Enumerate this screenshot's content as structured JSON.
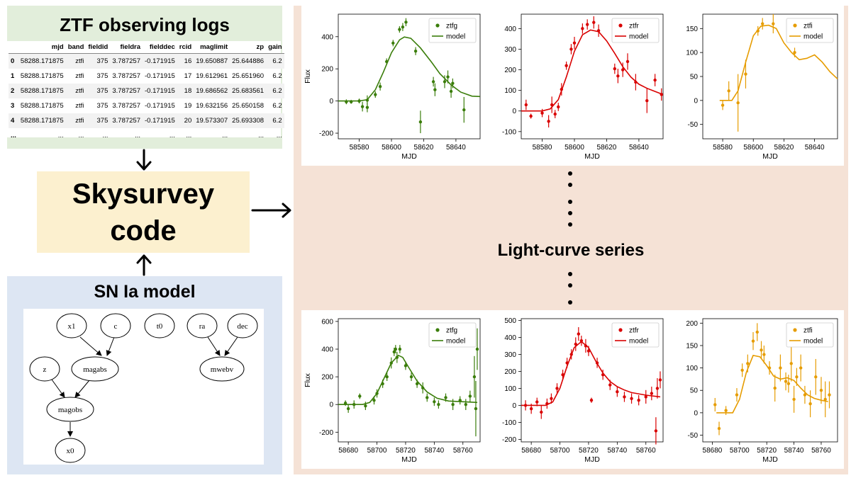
{
  "logs": {
    "title": "ZTF observing logs",
    "columns": [
      "",
      "mjd",
      "band",
      "fieldid",
      "fieldra",
      "fielddec",
      "rcid",
      "maglimit",
      "zp",
      "gain"
    ],
    "rows": [
      [
        "0",
        "58288.171875",
        "ztfi",
        "375",
        "3.787257",
        "-0.171915",
        "16",
        "19.650887",
        "25.644886",
        "6.2"
      ],
      [
        "1",
        "58288.171875",
        "ztfi",
        "375",
        "3.787257",
        "-0.171915",
        "17",
        "19.612961",
        "25.651960",
        "6.2"
      ],
      [
        "2",
        "58288.171875",
        "ztfi",
        "375",
        "3.787257",
        "-0.171915",
        "18",
        "19.686562",
        "25.683561",
        "6.2"
      ],
      [
        "3",
        "58288.171875",
        "ztfi",
        "375",
        "3.787257",
        "-0.171915",
        "19",
        "19.632156",
        "25.650158",
        "6.2"
      ],
      [
        "4",
        "58288.171875",
        "ztfi",
        "375",
        "3.787257",
        "-0.171915",
        "20",
        "19.573307",
        "25.693308",
        "6.2"
      ],
      [
        "...",
        "...",
        "...",
        "...",
        "...",
        "...",
        "...",
        "...",
        "...",
        "..."
      ]
    ]
  },
  "code": {
    "line1": "Skysurvey",
    "line2": "code"
  },
  "model": {
    "title": "SN Ia model",
    "nodes": [
      "x1",
      "c",
      "t0",
      "ra",
      "dec",
      "z",
      "magabs",
      "mwebv",
      "magobs",
      "x0"
    ]
  },
  "series_label": "Light-curve series",
  "colors": {
    "ztfg": "#3a7d0a",
    "ztfr": "#d90000",
    "ztfi": "#e69c00"
  },
  "chart_data": [
    {
      "type": "scatter",
      "xlabel": "MJD",
      "ylabel": "Flux",
      "legend": [
        "ztfg",
        "model"
      ],
      "xlim": [
        58567,
        58655
      ],
      "ylim": [
        -235,
        540
      ],
      "xticks": [
        58580,
        58600,
        58620,
        58640
      ],
      "yticks": [
        -200,
        0,
        200,
        400
      ],
      "points": [
        [
          58572,
          -5,
          15
        ],
        [
          58575,
          -5,
          12
        ],
        [
          58580,
          0,
          15
        ],
        [
          58582,
          -35,
          30
        ],
        [
          58585,
          -40,
          30
        ],
        [
          58585,
          5,
          30
        ],
        [
          58590,
          40,
          20
        ],
        [
          58593,
          90,
          25
        ],
        [
          58597,
          245,
          20
        ],
        [
          58601,
          360,
          20
        ],
        [
          58605,
          445,
          20
        ],
        [
          58607,
          460,
          25
        ],
        [
          58609,
          490,
          25
        ],
        [
          58615,
          310,
          25
        ],
        [
          58618,
          -130,
          70
        ],
        [
          58626,
          120,
          30
        ],
        [
          58627,
          70,
          40
        ],
        [
          58633,
          120,
          40
        ],
        [
          58635,
          150,
          40
        ],
        [
          58637,
          60,
          40
        ],
        [
          58638,
          110,
          30
        ],
        [
          58645,
          -55,
          80
        ]
      ],
      "model": [
        [
          58567,
          0
        ],
        [
          58580,
          0
        ],
        [
          58585,
          8
        ],
        [
          58590,
          70
        ],
        [
          58595,
          180
        ],
        [
          58600,
          300
        ],
        [
          58605,
          380
        ],
        [
          58608,
          398
        ],
        [
          58612,
          390
        ],
        [
          58618,
          330
        ],
        [
          58625,
          240
        ],
        [
          58630,
          170
        ],
        [
          58637,
          100
        ],
        [
          58643,
          55
        ],
        [
          58650,
          30
        ],
        [
          58655,
          28
        ]
      ]
    },
    {
      "type": "scatter",
      "xlabel": "MJD",
      "ylabel": "",
      "legend": [
        "ztfr",
        "model"
      ],
      "xlim": [
        58567,
        58655
      ],
      "ylim": [
        -135,
        470
      ],
      "xticks": [
        58580,
        58600,
        58620,
        58640
      ],
      "yticks": [
        -100,
        0,
        100,
        200,
        300,
        400
      ],
      "points": [
        [
          58570,
          30,
          25
        ],
        [
          58573,
          -25,
          12
        ],
        [
          58580,
          -10,
          20
        ],
        [
          58584,
          -50,
          30
        ],
        [
          58586,
          30,
          40
        ],
        [
          58588,
          -15,
          20
        ],
        [
          58590,
          20,
          20
        ],
        [
          58592,
          105,
          30
        ],
        [
          58595,
          220,
          20
        ],
        [
          58598,
          300,
          25
        ],
        [
          58600,
          330,
          30
        ],
        [
          58605,
          400,
          25
        ],
        [
          58608,
          420,
          25
        ],
        [
          58612,
          430,
          30
        ],
        [
          58615,
          390,
          30
        ],
        [
          58625,
          205,
          25
        ],
        [
          58627,
          170,
          35
        ],
        [
          58630,
          200,
          35
        ],
        [
          58633,
          240,
          40
        ],
        [
          58638,
          140,
          40
        ],
        [
          58645,
          50,
          60
        ],
        [
          58650,
          150,
          30
        ],
        [
          58654,
          80,
          30
        ]
      ],
      "model": [
        [
          58567,
          0
        ],
        [
          58580,
          0
        ],
        [
          58585,
          10
        ],
        [
          58590,
          55
        ],
        [
          58595,
          165
        ],
        [
          58600,
          290
        ],
        [
          58605,
          370
        ],
        [
          58610,
          393
        ],
        [
          58615,
          385
        ],
        [
          58620,
          340
        ],
        [
          58625,
          280
        ],
        [
          58630,
          215
        ],
        [
          58635,
          165
        ],
        [
          58640,
          130
        ],
        [
          58645,
          110
        ],
        [
          58650,
          95
        ],
        [
          58655,
          80
        ]
      ]
    },
    {
      "type": "scatter",
      "xlabel": "MJD",
      "ylabel": "",
      "legend": [
        "ztfi",
        "model"
      ],
      "xlim": [
        58567,
        58655
      ],
      "ylim": [
        -80,
        180
      ],
      "xticks": [
        58580,
        58600,
        58620,
        58640
      ],
      "yticks": [
        -50,
        0,
        50,
        100,
        150
      ],
      "points": [
        [
          58580,
          -10,
          10
        ],
        [
          58584,
          20,
          20
        ],
        [
          58590,
          -5,
          60
        ],
        [
          58595,
          55,
          30
        ],
        [
          58603,
          145,
          10
        ],
        [
          58606,
          160,
          12
        ],
        [
          58613,
          160,
          20
        ],
        [
          58627,
          100,
          10
        ]
      ],
      "model": [
        [
          58578,
          0
        ],
        [
          58586,
          0
        ],
        [
          58590,
          20
        ],
        [
          58595,
          80
        ],
        [
          58600,
          135
        ],
        [
          58605,
          155
        ],
        [
          58610,
          157
        ],
        [
          58615,
          150
        ],
        [
          58620,
          120
        ],
        [
          58625,
          100
        ],
        [
          58630,
          85
        ],
        [
          58635,
          88
        ],
        [
          58640,
          95
        ],
        [
          58645,
          80
        ],
        [
          58650,
          60
        ],
        [
          58655,
          45
        ]
      ]
    },
    {
      "type": "scatter",
      "xlabel": "MJD",
      "ylabel": "Flux",
      "legend": [
        "ztfg",
        "model"
      ],
      "xlim": [
        58673,
        58772
      ],
      "ylim": [
        -270,
        620
      ],
      "xticks": [
        58680,
        58700,
        58720,
        58740,
        58760
      ],
      "yticks": [
        -200,
        0,
        200,
        400,
        600
      ],
      "points": [
        [
          58678,
          10,
          20
        ],
        [
          58680,
          -30,
          30
        ],
        [
          58684,
          0,
          30
        ],
        [
          58688,
          60,
          20
        ],
        [
          58692,
          -10,
          30
        ],
        [
          58698,
          30,
          30
        ],
        [
          58700,
          80,
          30
        ],
        [
          58704,
          150,
          30
        ],
        [
          58707,
          200,
          30
        ],
        [
          58710,
          300,
          40
        ],
        [
          58712,
          380,
          30
        ],
        [
          58713,
          400,
          30
        ],
        [
          58714,
          340,
          40
        ],
        [
          58716,
          400,
          30
        ],
        [
          58720,
          280,
          30
        ],
        [
          58724,
          200,
          30
        ],
        [
          58728,
          150,
          30
        ],
        [
          58732,
          120,
          40
        ],
        [
          58735,
          50,
          30
        ],
        [
          58740,
          20,
          30
        ],
        [
          58743,
          0,
          30
        ],
        [
          58748,
          50,
          30
        ],
        [
          58753,
          0,
          40
        ],
        [
          58758,
          30,
          30
        ],
        [
          58762,
          0,
          40
        ],
        [
          58765,
          60,
          40
        ],
        [
          58768,
          200,
          150
        ],
        [
          58769,
          -30,
          200
        ],
        [
          58770,
          400,
          150
        ]
      ],
      "model": [
        [
          58673,
          0
        ],
        [
          58690,
          0
        ],
        [
          58695,
          15
        ],
        [
          58700,
          80
        ],
        [
          58705,
          190
        ],
        [
          58710,
          300
        ],
        [
          58715,
          355
        ],
        [
          58718,
          340
        ],
        [
          58722,
          270
        ],
        [
          58728,
          170
        ],
        [
          58735,
          90
        ],
        [
          58742,
          45
        ],
        [
          58750,
          25
        ],
        [
          58760,
          20
        ],
        [
          58770,
          15
        ]
      ]
    },
    {
      "type": "scatter",
      "xlabel": "MJD",
      "ylabel": "",
      "legend": [
        "ztfr",
        "model"
      ],
      "xlim": [
        58673,
        58772
      ],
      "ylim": [
        -215,
        510
      ],
      "xticks": [
        58680,
        58700,
        58720,
        58740,
        58760
      ],
      "yticks": [
        -200,
        -100,
        0,
        100,
        200,
        300,
        400,
        500
      ],
      "points": [
        [
          58676,
          0,
          30
        ],
        [
          58680,
          -20,
          30
        ],
        [
          58684,
          20,
          25
        ],
        [
          58687,
          -40,
          40
        ],
        [
          58691,
          10,
          30
        ],
        [
          58694,
          40,
          30
        ],
        [
          58698,
          100,
          30
        ],
        [
          58702,
          180,
          30
        ],
        [
          58705,
          250,
          30
        ],
        [
          58708,
          300,
          30
        ],
        [
          58711,
          360,
          40
        ],
        [
          58713,
          420,
          40
        ],
        [
          58715,
          380,
          30
        ],
        [
          58718,
          350,
          40
        ],
        [
          58720,
          320,
          30
        ],
        [
          58722,
          30,
          15
        ],
        [
          58726,
          250,
          30
        ],
        [
          58730,
          180,
          30
        ],
        [
          58735,
          120,
          30
        ],
        [
          58740,
          80,
          30
        ],
        [
          58745,
          50,
          30
        ],
        [
          58750,
          40,
          30
        ],
        [
          58755,
          30,
          30
        ],
        [
          58760,
          50,
          40
        ],
        [
          58764,
          70,
          40
        ],
        [
          58767,
          -150,
          80
        ],
        [
          58768,
          100,
          60
        ],
        [
          58770,
          150,
          50
        ]
      ],
      "model": [
        [
          58673,
          0
        ],
        [
          58690,
          0
        ],
        [
          58695,
          20
        ],
        [
          58700,
          100
        ],
        [
          58705,
          230
        ],
        [
          58710,
          340
        ],
        [
          58715,
          375
        ],
        [
          58720,
          340
        ],
        [
          58725,
          260
        ],
        [
          58730,
          190
        ],
        [
          58735,
          140
        ],
        [
          58740,
          110
        ],
        [
          58745,
          90
        ],
        [
          58750,
          75
        ],
        [
          58760,
          60
        ],
        [
          58770,
          50
        ]
      ]
    },
    {
      "type": "scatter",
      "xlabel": "MJD",
      "ylabel": "",
      "legend": [
        "ztfi",
        "model"
      ],
      "xlim": [
        58673,
        58772
      ],
      "ylim": [
        -65,
        210
      ],
      "xticks": [
        58680,
        58700,
        58720,
        58740,
        58760
      ],
      "yticks": [
        -50,
        0,
        50,
        100,
        150,
        200
      ],
      "points": [
        [
          58682,
          18,
          15
        ],
        [
          58685,
          -35,
          15
        ],
        [
          58690,
          5,
          10
        ],
        [
          58698,
          40,
          15
        ],
        [
          58702,
          95,
          15
        ],
        [
          58706,
          110,
          20
        ],
        [
          58710,
          160,
          20
        ],
        [
          58713,
          180,
          20
        ],
        [
          58716,
          140,
          20
        ],
        [
          58718,
          130,
          20
        ],
        [
          58722,
          100,
          15
        ],
        [
          58726,
          55,
          30
        ],
        [
          58730,
          100,
          30
        ],
        [
          58734,
          70,
          20
        ],
        [
          58736,
          65,
          20
        ],
        [
          58738,
          110,
          40
        ],
        [
          58740,
          30,
          30
        ],
        [
          58742,
          80,
          20
        ],
        [
          58745,
          100,
          30
        ],
        [
          58748,
          40,
          20
        ],
        [
          58752,
          20,
          30
        ],
        [
          58756,
          80,
          40
        ],
        [
          58760,
          50,
          30
        ],
        [
          58763,
          30,
          40
        ],
        [
          58766,
          40,
          30
        ]
      ],
      "model": [
        [
          58683,
          0
        ],
        [
          58695,
          0
        ],
        [
          58700,
          30
        ],
        [
          58705,
          90
        ],
        [
          58710,
          128
        ],
        [
          58715,
          125
        ],
        [
          58720,
          105
        ],
        [
          58725,
          82
        ],
        [
          58730,
          75
        ],
        [
          58735,
          78
        ],
        [
          58740,
          72
        ],
        [
          58745,
          55
        ],
        [
          58750,
          40
        ],
        [
          58755,
          32
        ],
        [
          58760,
          28
        ],
        [
          58765,
          25
        ]
      ]
    }
  ]
}
